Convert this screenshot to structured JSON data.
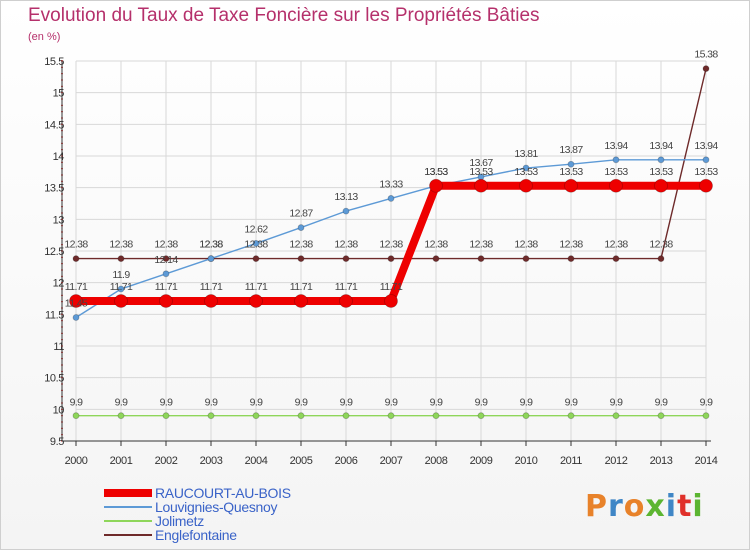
{
  "header": {
    "title": "Evolution du Taux de Taxe Foncière sur les Propriétés Bâties",
    "unit": "(en %)"
  },
  "brand": {
    "name": "Proxiti",
    "letter_colors": [
      "#e8822a",
      "#3f86c6",
      "#e8822a",
      "#5cb531",
      "#3f86c6",
      "#e0302a",
      "#5cb531"
    ]
  },
  "colors": {
    "title": "#b5306b",
    "legend_text": "#3a63c8",
    "grid": "#d8d8d8",
    "axis": "#333333"
  },
  "chart_data": {
    "type": "line",
    "title": "Evolution du Taux de Taxe Foncière sur les Propriétés Bâties",
    "ylabel": "(en %)",
    "xlabel": "",
    "ylim": [
      9.5,
      15.5
    ],
    "yticks": [
      "9.5",
      "10",
      "10.5",
      "11",
      "11.5",
      "12",
      "12.5",
      "13",
      "13.5",
      "14",
      "14.5",
      "15",
      "15.5"
    ],
    "categories": [
      "2000",
      "2001",
      "2002",
      "2003",
      "2004",
      "2005",
      "2006",
      "2007",
      "2008",
      "2009",
      "2010",
      "2011",
      "2012",
      "2013",
      "2014"
    ],
    "grid": true,
    "legend_position": "bottom-left",
    "series": [
      {
        "name": "RAUCOURT-AU-BOIS",
        "color": "#ee0000",
        "values": [
          11.71,
          11.71,
          11.71,
          11.71,
          11.71,
          11.71,
          11.71,
          11.71,
          13.53,
          13.53,
          13.53,
          13.53,
          13.53,
          13.53,
          13.53
        ],
        "labels": [
          "11.71",
          "11.71",
          "11.71",
          "11.71",
          "11.71",
          "11.71",
          "11.71",
          "11.71",
          "13.53",
          "13.53",
          "13.53",
          "13.53",
          "13.53",
          "13.53",
          "13.53"
        ]
      },
      {
        "name": "Louvignies-Quesnoy",
        "color": "#5d9ad6",
        "values": [
          11.45,
          11.9,
          12.14,
          12.38,
          12.62,
          12.87,
          13.13,
          13.33,
          13.53,
          13.67,
          13.81,
          13.87,
          13.94,
          13.94,
          13.94
        ],
        "labels": [
          "11.45",
          "11.9",
          "12.14",
          "12.38",
          "12.62",
          "12.87",
          "13.13",
          "13.33",
          "13.53",
          "13.67",
          "13.81",
          "13.87",
          "13.94",
          "13.94",
          "13.94"
        ]
      },
      {
        "name": "Jolimetz",
        "color": "#8ed65a",
        "values": [
          9.9,
          9.9,
          9.9,
          9.9,
          9.9,
          9.9,
          9.9,
          9.9,
          9.9,
          9.9,
          9.9,
          9.9,
          9.9,
          9.9,
          9.9
        ],
        "labels": [
          "9.9",
          "9.9",
          "9.9",
          "9.9",
          "9.9",
          "9.9",
          "9.9",
          "9.9",
          "9.9",
          "9.9",
          "9.9",
          "9.9",
          "9.9",
          "9.9",
          "9.9"
        ]
      },
      {
        "name": "Englefontaine",
        "color": "#6e2a2a",
        "values": [
          12.38,
          12.38,
          12.38,
          12.38,
          12.38,
          12.38,
          12.38,
          12.38,
          12.38,
          12.38,
          12.38,
          12.38,
          12.38,
          12.38,
          15.38
        ],
        "labels": [
          "12.38",
          "12.38",
          "12.38",
          "12.38",
          "12.38",
          "12.38",
          "12.38",
          "12.38",
          "12.38",
          "12.38",
          "12.38",
          "12.38",
          "12.38",
          "12.38",
          "15.38"
        ]
      }
    ]
  }
}
